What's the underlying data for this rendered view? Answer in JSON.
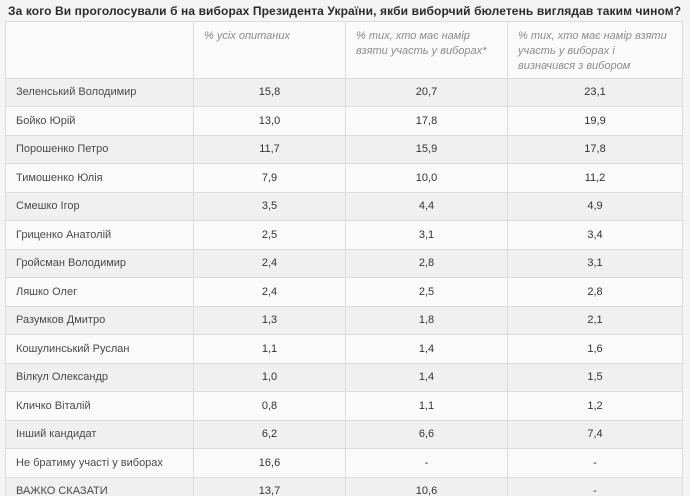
{
  "page_title": "За кого Ви проголосували б на виборах Президента України, якби виборчий бюлетень виглядав таким чином?",
  "colors": {
    "page_background": "#f4f4f4",
    "table_border": "#dcdcdc",
    "row_odd_background": "#f0f0f0",
    "row_even_background": "#fafafa",
    "header_text": "#8b8b8b",
    "title_text": "#2b2b2b",
    "cell_text": "#3f3f3f"
  },
  "chart_data": {
    "type": "table",
    "title": "За кого Ви проголосували б на виборах Президента України, якби виборчий бюлетень виглядав таким чином?",
    "columns": [
      "",
      "% усіх опитаних",
      "% тих, хто має намір взяти участь у виборах*",
      "% тих, хто має намір взяти участь у виборах і визначився з вибором"
    ],
    "rows": [
      [
        "Зеленський Володимир",
        "15,8",
        "20,7",
        "23,1"
      ],
      [
        "Бойко Юрій",
        "13,0",
        "17,8",
        "19,9"
      ],
      [
        "Порошенко Петро",
        "11,7",
        "15,9",
        "17,8"
      ],
      [
        "Тимошенко Юлія",
        "7,9",
        "10,0",
        "11,2"
      ],
      [
        "Смешко Ігор",
        "3,5",
        "4,4",
        "4,9"
      ],
      [
        "Гриценко Анатолій",
        "2,5",
        "3,1",
        "3,4"
      ],
      [
        "Гройсман Володимир",
        "2,4",
        "2,8",
        "3,1"
      ],
      [
        "Ляшко Олег",
        "2,4",
        "2,5",
        "2,8"
      ],
      [
        "Разумков Дмитро",
        "1,3",
        "1,8",
        "2,1"
      ],
      [
        "Кошулинський Руслан",
        "1,1",
        "1,4",
        "1,6"
      ],
      [
        "Вілкул Олександр",
        "1,0",
        "1,4",
        "1,5"
      ],
      [
        "Кличко Віталій",
        "0,8",
        "1,1",
        "1,2"
      ],
      [
        "Інший кандидат",
        "6,2",
        "6,6",
        "7,4"
      ],
      [
        "Не братиму участі у виборах",
        "16,6",
        "-",
        "-"
      ],
      [
        "ВАЖКО СКАЗАТИ",
        "13,7",
        "10,6",
        "-"
      ]
    ]
  }
}
